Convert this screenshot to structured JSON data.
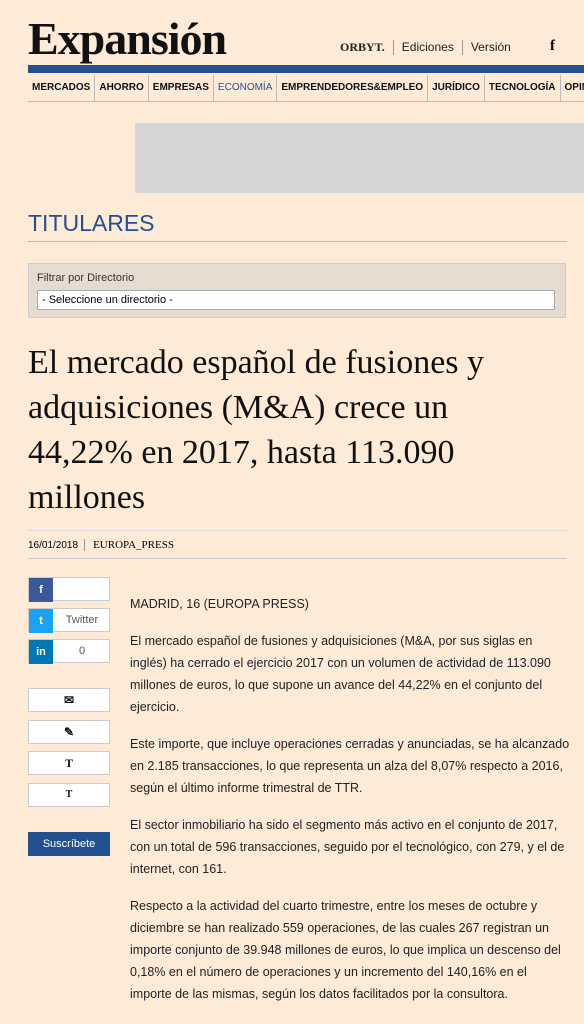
{
  "header": {
    "logo": "Expansión",
    "links": [
      "ORBYT.",
      "Ediciones",
      "Versión"
    ],
    "social": "f"
  },
  "nav": [
    "MERCADOS",
    "AHORRO",
    "EMPRESAS",
    "ECONOMÍA",
    "EMPRENDEDORES&EMPLEO",
    "JURÍDICO",
    "TECNOLOGÍA",
    "OPINIÓN"
  ],
  "section": "TITULARES",
  "filter": {
    "label": "Filtrar por Directorio",
    "placeholder": "- Seleccione un directorio -"
  },
  "article": {
    "headline": "El mercado español de fusiones y adquisiciones (M&A) crece un 44,22% en 2017, hasta 113.090 millones",
    "date": "16/01/2018",
    "source": "EUROPA_PRESS",
    "share": {
      "twitter": "Twitter",
      "linkedin_count": "0"
    },
    "tools": [
      "T",
      "T"
    ],
    "subscribe": "Suscríbete",
    "paragraphs": [
      "MADRID, 16 (EUROPA PRESS)",
      "El mercado español de fusiones y adquisiciones (M&A, por sus siglas en inglés) ha cerrado el ejercicio 2017 con un volumen de actividad de 113.090 millones de euros, lo que supone un avance del 44,22% en el conjunto del ejercicio.",
      "Este importe, que incluye operaciones cerradas y anunciadas, se ha alcanzado en 2.185 transacciones, lo que representa un alza del 8,07% respecto a 2016, según el último informe trimestral de TTR.",
      "El sector inmobiliario ha sido el segmento más activo en el conjunto de 2017, con un total de 596 transacciones, seguido por el tecnológico, con 279, y el de internet, con 161.",
      "Respecto a la actividad del cuarto trimestre, entre los meses de octubre y diciembre se han realizado 559 operaciones, de las cuales 267 registran un importe conjunto de 39.948 millones de euros, lo que implica un descenso del 0,18% en el número de operaciones y un incremento del 140,16% en el importe de las mismas, según los datos facilitados por la consultora."
    ]
  }
}
